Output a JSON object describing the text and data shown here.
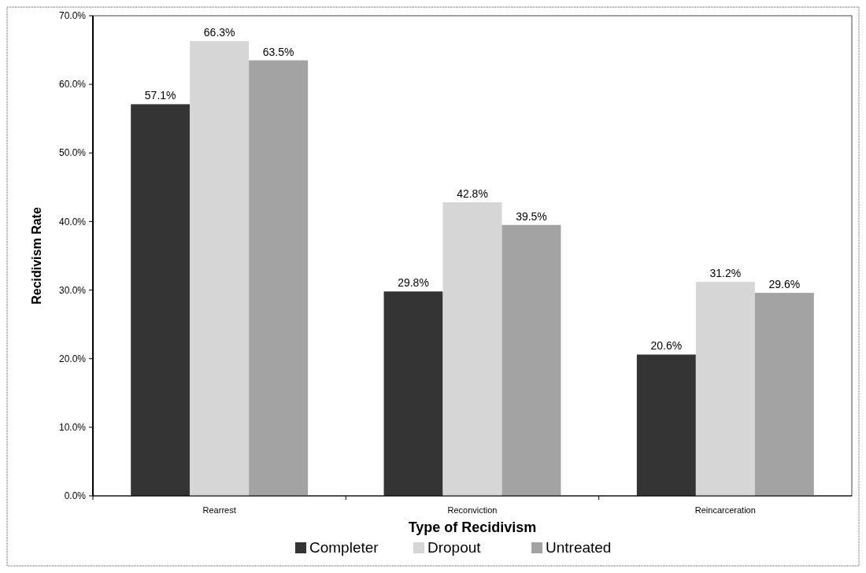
{
  "chart_data": {
    "type": "bar",
    "xlabel": "Type of Recidivism",
    "ylabel": "Recidivism Rate",
    "categories": [
      "Rearrest",
      "Reconviction",
      "Reincarceration"
    ],
    "series": [
      {
        "name": "Completer",
        "color": "#333333",
        "values": [
          57.1,
          29.8,
          20.6
        ],
        "value_labels": [
          "57.1%",
          "29.8%",
          "20.6%"
        ]
      },
      {
        "name": "Dropout",
        "color": "#d6d6d6",
        "values": [
          66.3,
          42.8,
          31.2
        ],
        "value_labels": [
          "66.3%",
          "42.8%",
          "31.2%"
        ]
      },
      {
        "name": "Untreated",
        "color": "#a3a3a3",
        "values": [
          63.5,
          39.5,
          29.6
        ],
        "value_labels": [
          "63.5%",
          "39.5%",
          "29.6%"
        ]
      }
    ],
    "ylim": [
      0,
      70
    ],
    "yticks": [
      {
        "value": 0,
        "label": "0.0%"
      },
      {
        "value": 10,
        "label": "10.0%"
      },
      {
        "value": 20,
        "label": "20.0%"
      },
      {
        "value": 30,
        "label": "30.0%"
      },
      {
        "value": 40,
        "label": "40.0%"
      },
      {
        "value": 50,
        "label": "50.0%"
      },
      {
        "value": 60,
        "label": "60.0%"
      },
      {
        "value": 70,
        "label": "70.0%"
      }
    ],
    "legend": "bottom",
    "grid": false
  }
}
